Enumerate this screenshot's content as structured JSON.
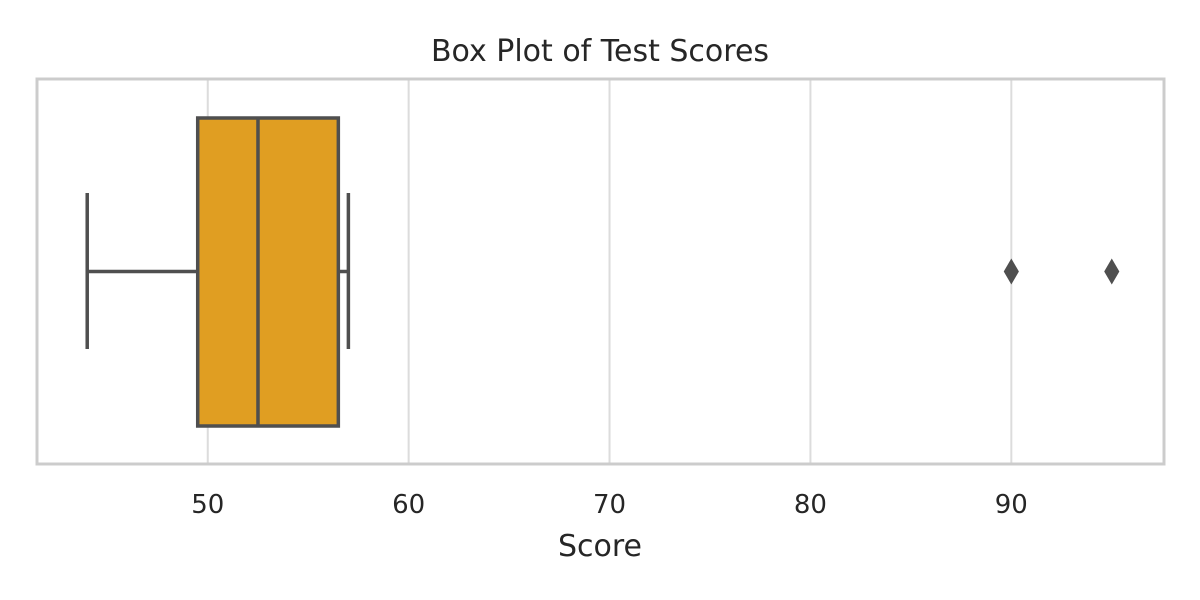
{
  "chart_data": {
    "type": "box",
    "orientation": "horizontal",
    "title": "Box Plot of Test Scores",
    "xlabel": "Score",
    "ylabel": "",
    "xlim": [
      41.5,
      97.6
    ],
    "xticks": [
      50,
      60,
      70,
      80,
      90
    ],
    "grid": "vertical",
    "box": {
      "whisker_low": 44,
      "q1": 49.5,
      "median": 52.5,
      "q3": 56.5,
      "whisker_high": 57,
      "outliers": [
        90,
        95
      ]
    },
    "colors": {
      "box_fill": "#e09e22",
      "line": "#4f4f4f",
      "grid": "#dcdcdc",
      "frame": "#cccccc"
    }
  }
}
